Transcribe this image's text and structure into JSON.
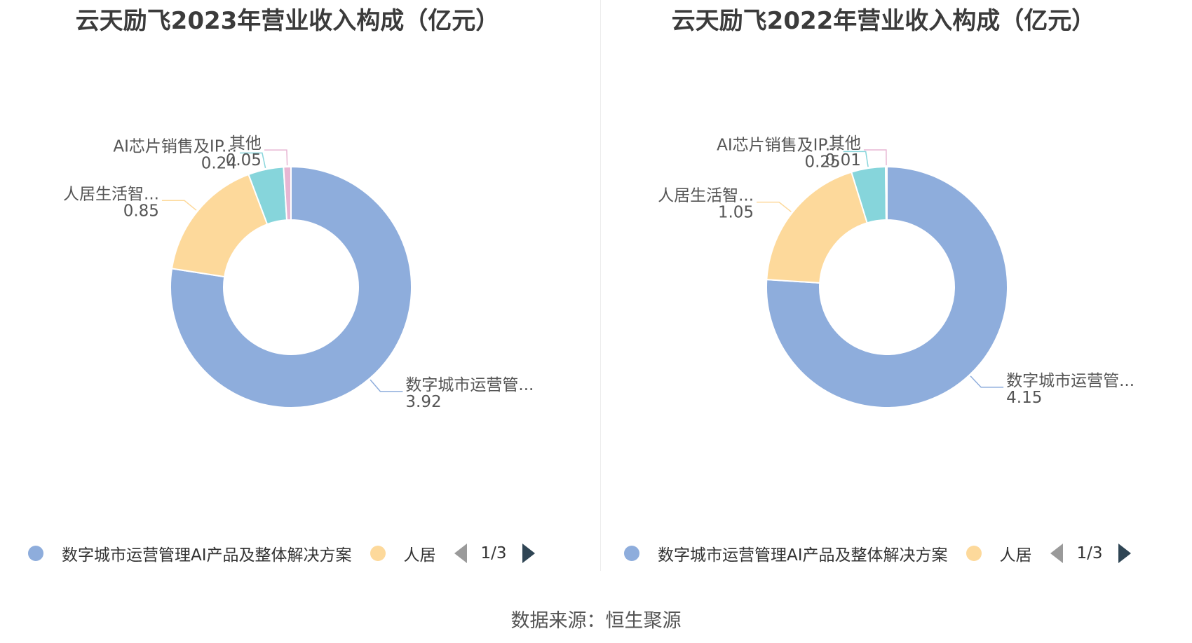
{
  "chart_data": [
    {
      "type": "pie",
      "title": "云天励飞2023年营业收入构成（亿元）",
      "slices": [
        {
          "name": "数字城市运营管理AI产品及整体解决方案",
          "label": "数字城市运营管...",
          "value": 3.92,
          "value_label": "3.92",
          "color": "#8eaddc"
        },
        {
          "name": "人居生活智能产品",
          "label": "人居生活智...",
          "value": 0.85,
          "value_label": "0.85",
          "color": "#fdd99b"
        },
        {
          "name": "AI芯片销售及IP授权",
          "label": "AI芯片销售及IP...",
          "value": 0.24,
          "value_label": "0.24",
          "color": "#86d5db"
        },
        {
          "name": "其他",
          "label": "其他",
          "value": 0.05,
          "value_label": "0.05",
          "color": "#e7b6d3"
        }
      ],
      "legend": {
        "items": [
          {
            "label": "数字城市运营管理AI产品及整体解决方案",
            "color": "#8eaddc"
          },
          {
            "label": "人居",
            "color": "#fdd99b"
          }
        ],
        "page": "1/3",
        "placement": "bottom"
      }
    },
    {
      "type": "pie",
      "title": "云天励飞2022年营业收入构成（亿元）",
      "slices": [
        {
          "name": "数字城市运营管理AI产品及整体解决方案",
          "label": "数字城市运营管...",
          "value": 4.15,
          "value_label": "4.15",
          "color": "#8eaddc"
        },
        {
          "name": "人居生活智能产品",
          "label": "人居生活智...",
          "value": 1.05,
          "value_label": "1.05",
          "color": "#fdd99b"
        },
        {
          "name": "AI芯片销售及IP授权",
          "label": "AI芯片销售及IP...",
          "value": 0.25,
          "value_label": "0.25",
          "color": "#86d5db"
        },
        {
          "name": "其他",
          "label": "其他",
          "value": 0.01,
          "value_label": "0.01",
          "color": "#e7b6d3"
        }
      ],
      "legend": {
        "items": [
          {
            "label": "数字城市运营管理AI产品及整体解决方案",
            "color": "#8eaddc"
          },
          {
            "label": "人居",
            "color": "#fdd99b"
          }
        ],
        "page": "1/3",
        "placement": "bottom"
      }
    }
  ],
  "footer": {
    "source": "数据来源：恒生聚源"
  }
}
